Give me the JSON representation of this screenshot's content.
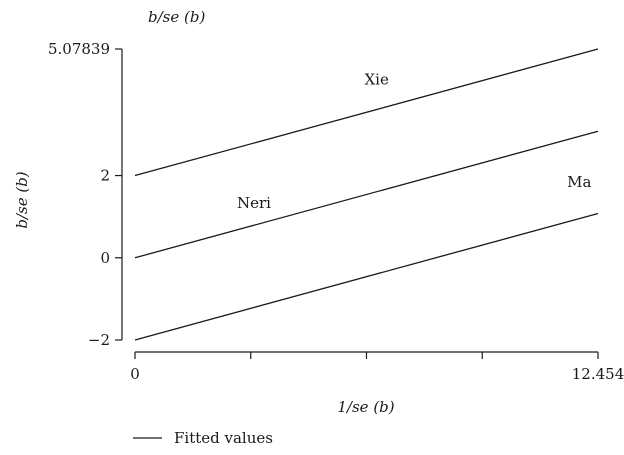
{
  "chart_data": {
    "type": "line",
    "title": "b/se (b)",
    "xlabel": "1/se (b)",
    "ylabel": "b/se (b)",
    "xlim": [
      0,
      12.454
    ],
    "ylim": [
      -2,
      5.07839
    ],
    "x_ticks": [
      0,
      3.1135,
      6.227,
      9.3405,
      12.454
    ],
    "x_tick_labels": [
      "0",
      "",
      "",
      "",
      "12.454"
    ],
    "y_ticks": [
      -2,
      0,
      2,
      5.07839
    ],
    "y_tick_labels": [
      "−2",
      "0",
      "2",
      "5.07839"
    ],
    "series": [
      {
        "label": "Xie",
        "x": [
          0,
          12.454
        ],
        "y": [
          2,
          5.07839
        ],
        "label_at": [
          6.5,
          4.22
        ]
      },
      {
        "label": "Neri",
        "x": [
          0,
          12.454
        ],
        "y": [
          0,
          3.07839
        ],
        "label_at": [
          3.2,
          1.21
        ]
      },
      {
        "label": "Ma",
        "x": [
          0,
          12.454
        ],
        "y": [
          -2,
          1.07839
        ],
        "label_at": [
          11.95,
          1.72
        ]
      }
    ],
    "legend": {
      "position": "bottom-left",
      "entries": [
        "Fitted values"
      ]
    },
    "grid": false
  }
}
